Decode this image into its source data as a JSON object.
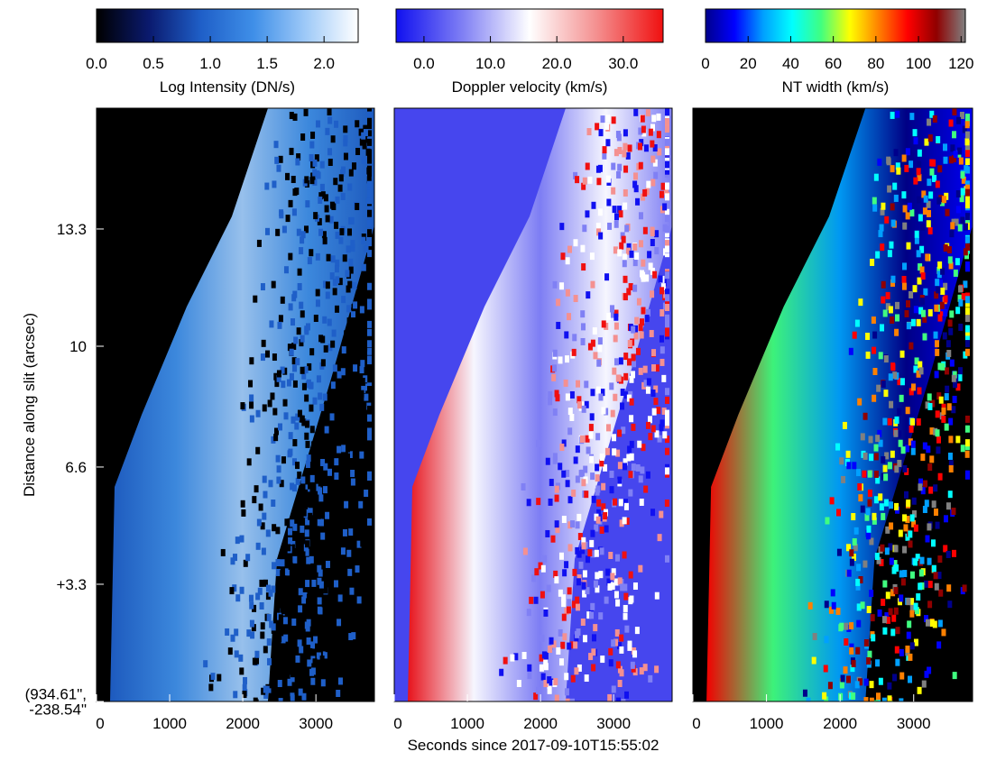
{
  "chart_data": [
    {
      "type": "heatmap",
      "ylabel": "Distance along slit (arcsec)",
      "xlim": [
        0,
        3800
      ],
      "xticks": [
        0,
        1000,
        2000,
        3000
      ],
      "ylim": [
        0,
        16.7
      ],
      "yticks": [
        {
          "value": 0,
          "label": "(934.61\",\n-238.54\""
        },
        {
          "value": 3.3,
          "label": "+3.3"
        },
        6.6,
        10.0,
        13.3
      ],
      "background": "#000000",
      "colormap": [
        "#000000",
        "#0a1a6e",
        "#1f5fc8",
        "#3f8fe8",
        "#9fcaf8",
        "#ffffff"
      ],
      "colorbar": {
        "label": "Log Intensity (DN/s)",
        "xlim": [
          0,
          2.3
        ],
        "xticks": [
          {
            "value": 0,
            "label": "0.0"
          },
          {
            "value": 0.5,
            "label": "0.5"
          },
          {
            "value": 1,
            "label": "1.0"
          },
          {
            "value": 1.5,
            "label": "1.5"
          },
          {
            "value": 2,
            "label": "2.0"
          }
        ]
      }
    },
    {
      "type": "heatmap",
      "xlabel": "Seconds since 2017-09-10T15:55:02",
      "xlim": [
        0,
        3800
      ],
      "xticks": [
        0,
        1000,
        2000,
        3000
      ],
      "ylim": [
        0,
        16.7
      ],
      "background": "#4646ee",
      "colormap": [
        "#1010f0",
        "#8080f4",
        "#ffffff",
        "#f49090",
        "#f01010"
      ],
      "colorbar": {
        "label": "Doppler velocity (km/s)",
        "xlim": [
          -4.2,
          36
        ],
        "xticks": [
          {
            "value": 0,
            "label": "0.0"
          },
          {
            "value": 10,
            "label": "10.0"
          },
          {
            "value": 20,
            "label": "20.0"
          },
          {
            "value": 30,
            "label": "30.0"
          }
        ]
      }
    },
    {
      "type": "heatmap",
      "xlim": [
        0,
        3800
      ],
      "xticks": [
        0,
        1000,
        2000,
        3000
      ],
      "ylim": [
        0,
        16.7
      ],
      "background": "#000000",
      "colormap": [
        "#00008c",
        "#0000ff",
        "#00a0ff",
        "#00ffff",
        "#40ff80",
        "#ffff00",
        "#ff8000",
        "#ff0000",
        "#900000",
        "#808080"
      ],
      "colorbar": {
        "label": "NT width (km/s)",
        "xlim": [
          0,
          122
        ],
        "xticks": [
          0,
          20,
          40,
          60,
          80,
          100,
          120
        ]
      }
    }
  ]
}
